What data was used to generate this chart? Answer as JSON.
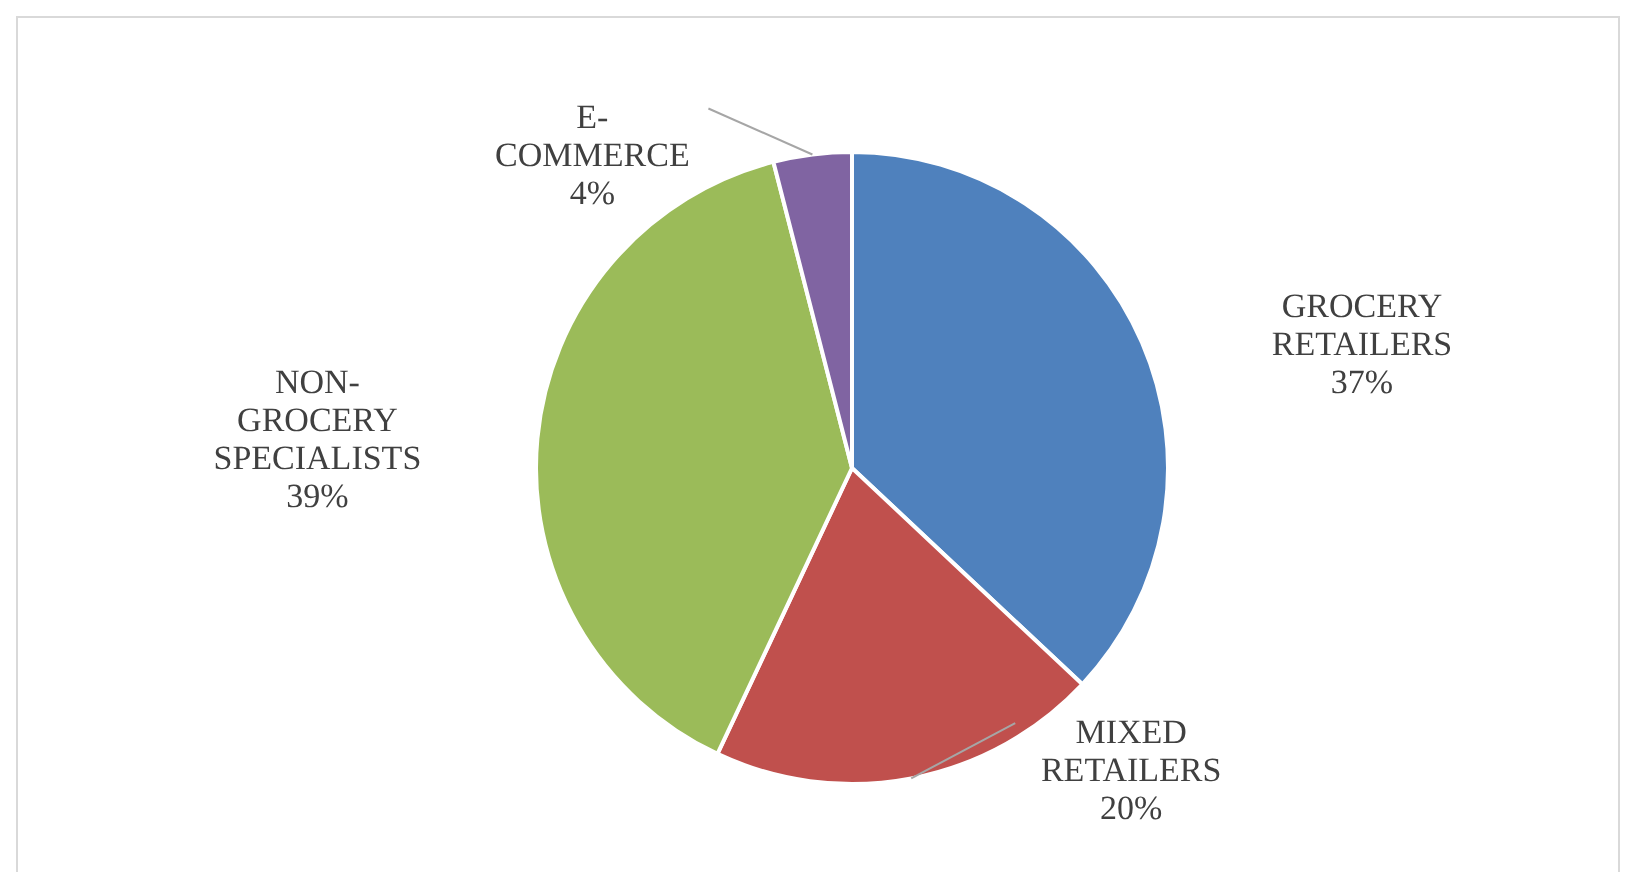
{
  "chart_data": {
    "type": "pie",
    "categories": [
      "GROCERY RETAILERS",
      "MIXED RETAILERS",
      "NON-GROCERY SPECIALISTS",
      "E-COMMERCE"
    ],
    "values": [
      37,
      20,
      39,
      4
    ],
    "colors": [
      "#4f81bd",
      "#c0504d",
      "#9bbb59",
      "#8064a2"
    ],
    "value_labels": [
      "37%",
      "20%",
      "39%",
      "4%"
    ]
  }
}
